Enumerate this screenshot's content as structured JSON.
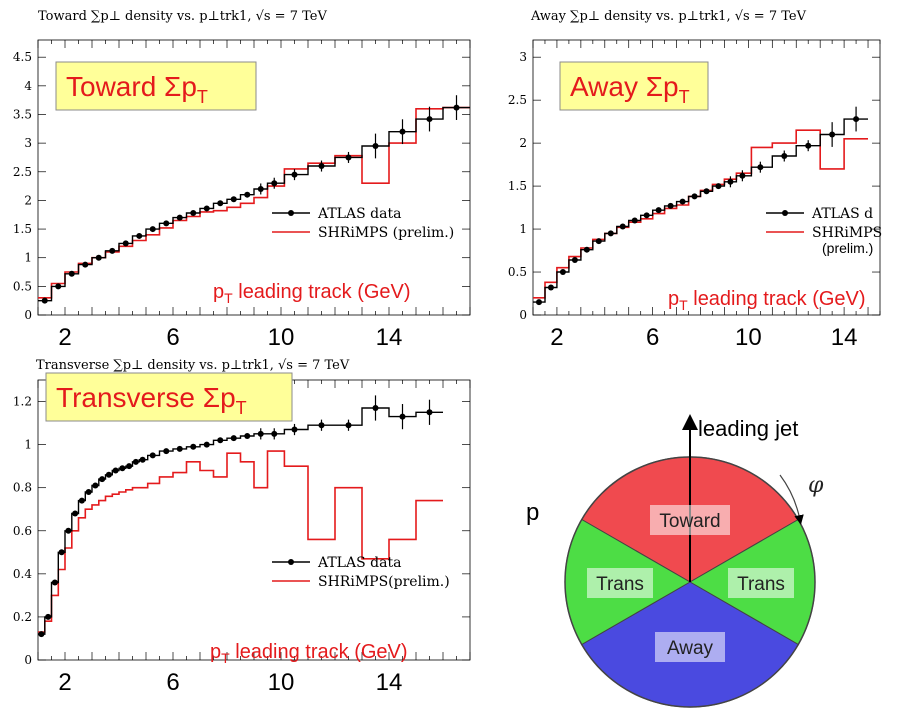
{
  "colors": {
    "data": "#000000",
    "model": "#e41a1c",
    "box_fill": "#ffff99",
    "box_stroke": "#8b8b8b",
    "red_text": "#e41a1c",
    "toward": "#f04a4f",
    "trans": "#4ddd45",
    "away": "#4a4ae0"
  },
  "chart_data": [
    {
      "type": "line",
      "title": "Toward ∑p⊥ density vs. p⊥trk1, √s = 7 TeV",
      "box_label": "Toward ΣpT",
      "xlabel": "pT leading track (GeV)",
      "x_ticks": [
        "2",
        "6",
        "10",
        "14"
      ],
      "y_ticks": [
        "0",
        "0.5",
        "1",
        "1.5",
        "2",
        "2.5",
        "3",
        "3.5",
        "4",
        "4.5"
      ],
      "xlim": [
        1,
        17
      ],
      "ylim": [
        0,
        4.8
      ],
      "legend": [
        "ATLAS data",
        "SHRiMPS (prelim.)"
      ],
      "series": [
        {
          "name": "ATLAS data",
          "x": [
            1.25,
            1.75,
            2.25,
            2.75,
            3.25,
            3.75,
            4.25,
            4.75,
            5.25,
            5.75,
            6.25,
            6.75,
            7.25,
            7.75,
            8.25,
            8.75,
            9.25,
            9.75,
            10.5,
            11.5,
            12.5,
            13.5,
            14.5,
            15.5,
            16.5
          ],
          "values": [
            0.25,
            0.5,
            0.72,
            0.88,
            1.0,
            1.12,
            1.25,
            1.38,
            1.5,
            1.6,
            1.7,
            1.78,
            1.86,
            1.95,
            2.02,
            2.1,
            2.2,
            2.3,
            2.45,
            2.6,
            2.75,
            2.95,
            3.2,
            3.42,
            3.62
          ]
        },
        {
          "name": "SHRiMPS (prelim.)",
          "x": [
            1.25,
            1.75,
            2.25,
            2.75,
            3.25,
            3.75,
            4.25,
            4.75,
            5.25,
            5.75,
            6.25,
            6.75,
            7.25,
            7.75,
            8.25,
            8.75,
            9.25,
            9.75,
            10.5,
            11.5,
            12.5,
            13.5,
            14.5,
            15.5,
            16.5
          ],
          "values": [
            0.3,
            0.55,
            0.75,
            0.9,
            1.0,
            1.1,
            1.2,
            1.3,
            1.4,
            1.52,
            1.65,
            1.72,
            1.8,
            1.82,
            1.88,
            1.95,
            2.05,
            2.25,
            2.55,
            2.65,
            2.78,
            2.3,
            3.0,
            3.6,
            3.62
          ]
        }
      ]
    },
    {
      "type": "line",
      "title": "Away ∑p⊥ density vs. p⊥trk1, √s = 7 TeV",
      "box_label": "Away ΣpT",
      "xlabel": "pT leading track (GeV)",
      "x_ticks": [
        "2",
        "6",
        "10",
        "14"
      ],
      "y_ticks": [
        "0",
        "0.5",
        "1",
        "1.5",
        "2",
        "2.5",
        "3"
      ],
      "xlim": [
        1,
        15.5
      ],
      "ylim": [
        0,
        3.2
      ],
      "legend": [
        "ATLAS d",
        "SHRiMPS",
        "(prelim.)"
      ],
      "series": [
        {
          "name": "ATLAS data",
          "x": [
            1.25,
            1.75,
            2.25,
            2.75,
            3.25,
            3.75,
            4.25,
            4.75,
            5.25,
            5.75,
            6.25,
            6.75,
            7.25,
            7.75,
            8.25,
            8.75,
            9.25,
            9.75,
            10.5,
            11.5,
            12.5,
            13.5,
            14.5
          ],
          "values": [
            0.15,
            0.32,
            0.5,
            0.64,
            0.76,
            0.86,
            0.95,
            1.03,
            1.1,
            1.16,
            1.22,
            1.27,
            1.32,
            1.38,
            1.44,
            1.5,
            1.55,
            1.62,
            1.72,
            1.85,
            1.97,
            2.1,
            2.28
          ]
        },
        {
          "name": "SHRiMPS",
          "x": [
            1.25,
            1.75,
            2.25,
            2.75,
            3.25,
            3.75,
            4.25,
            4.75,
            5.25,
            5.75,
            6.25,
            6.75,
            7.25,
            7.75,
            8.25,
            8.75,
            9.25,
            9.75,
            10.5,
            11.5,
            12.5,
            13.5,
            14.5
          ],
          "values": [
            0.2,
            0.38,
            0.55,
            0.68,
            0.78,
            0.88,
            0.95,
            1.02,
            1.08,
            1.12,
            1.18,
            1.24,
            1.28,
            1.38,
            1.45,
            1.52,
            1.58,
            1.65,
            1.95,
            2.0,
            2.15,
            1.7,
            2.05
          ]
        }
      ]
    },
    {
      "type": "line",
      "title": "Transverse ∑p⊥ density vs. p⊥trk1, √s = 7 TeV",
      "box_label": "Transverse ΣpT",
      "xlabel": "pT leading track (GeV)",
      "x_ticks": [
        "2",
        "6",
        "10",
        "14"
      ],
      "y_ticks": [
        "0",
        "0.2",
        "0.4",
        "0.6",
        "0.8",
        "1",
        "1.2"
      ],
      "xlim": [
        1,
        17
      ],
      "ylim": [
        0,
        1.3
      ],
      "legend": [
        "ATLAS data",
        "SHRiMPS(prelim.)"
      ],
      "series": [
        {
          "name": "ATLAS data",
          "x": [
            1.125,
            1.375,
            1.625,
            1.875,
            2.125,
            2.375,
            2.625,
            2.875,
            3.125,
            3.375,
            3.625,
            3.875,
            4.125,
            4.375,
            4.625,
            4.875,
            5.25,
            5.75,
            6.25,
            6.75,
            7.25,
            7.75,
            8.25,
            8.75,
            9.25,
            9.75,
            10.5,
            11.5,
            12.5,
            13.5,
            14.5,
            15.5
          ],
          "values": [
            0.12,
            0.2,
            0.36,
            0.5,
            0.6,
            0.68,
            0.74,
            0.78,
            0.81,
            0.84,
            0.86,
            0.88,
            0.89,
            0.9,
            0.92,
            0.93,
            0.95,
            0.97,
            0.98,
            0.99,
            1.0,
            1.02,
            1.03,
            1.04,
            1.05,
            1.05,
            1.07,
            1.09,
            1.09,
            1.17,
            1.13,
            1.15
          ]
        },
        {
          "name": "SHRiMPS(prelim.)",
          "x": [
            1.125,
            1.375,
            1.625,
            1.875,
            2.125,
            2.375,
            2.625,
            2.875,
            3.125,
            3.375,
            3.625,
            3.875,
            4.125,
            4.375,
            4.625,
            4.875,
            5.25,
            5.75,
            6.25,
            6.75,
            7.25,
            7.75,
            8.25,
            8.75,
            9.25,
            9.75,
            10.5,
            11.5,
            12.5,
            13.5,
            14.5,
            15.5
          ],
          "values": [
            0.13,
            0.18,
            0.3,
            0.42,
            0.52,
            0.6,
            0.66,
            0.7,
            0.72,
            0.74,
            0.76,
            0.77,
            0.78,
            0.79,
            0.8,
            0.8,
            0.82,
            0.85,
            0.87,
            0.92,
            0.88,
            0.85,
            0.96,
            0.92,
            0.8,
            0.97,
            0.9,
            0.56,
            0.8,
            0.47,
            0.56,
            0.74
          ]
        }
      ]
    }
  ],
  "diagram": {
    "leading_jet_label": "leading jet",
    "phi_label": "φ",
    "p_label": "p",
    "regions": {
      "toward": "Toward",
      "trans_left": "Trans",
      "trans_right": "Trans",
      "away": "Away"
    }
  }
}
